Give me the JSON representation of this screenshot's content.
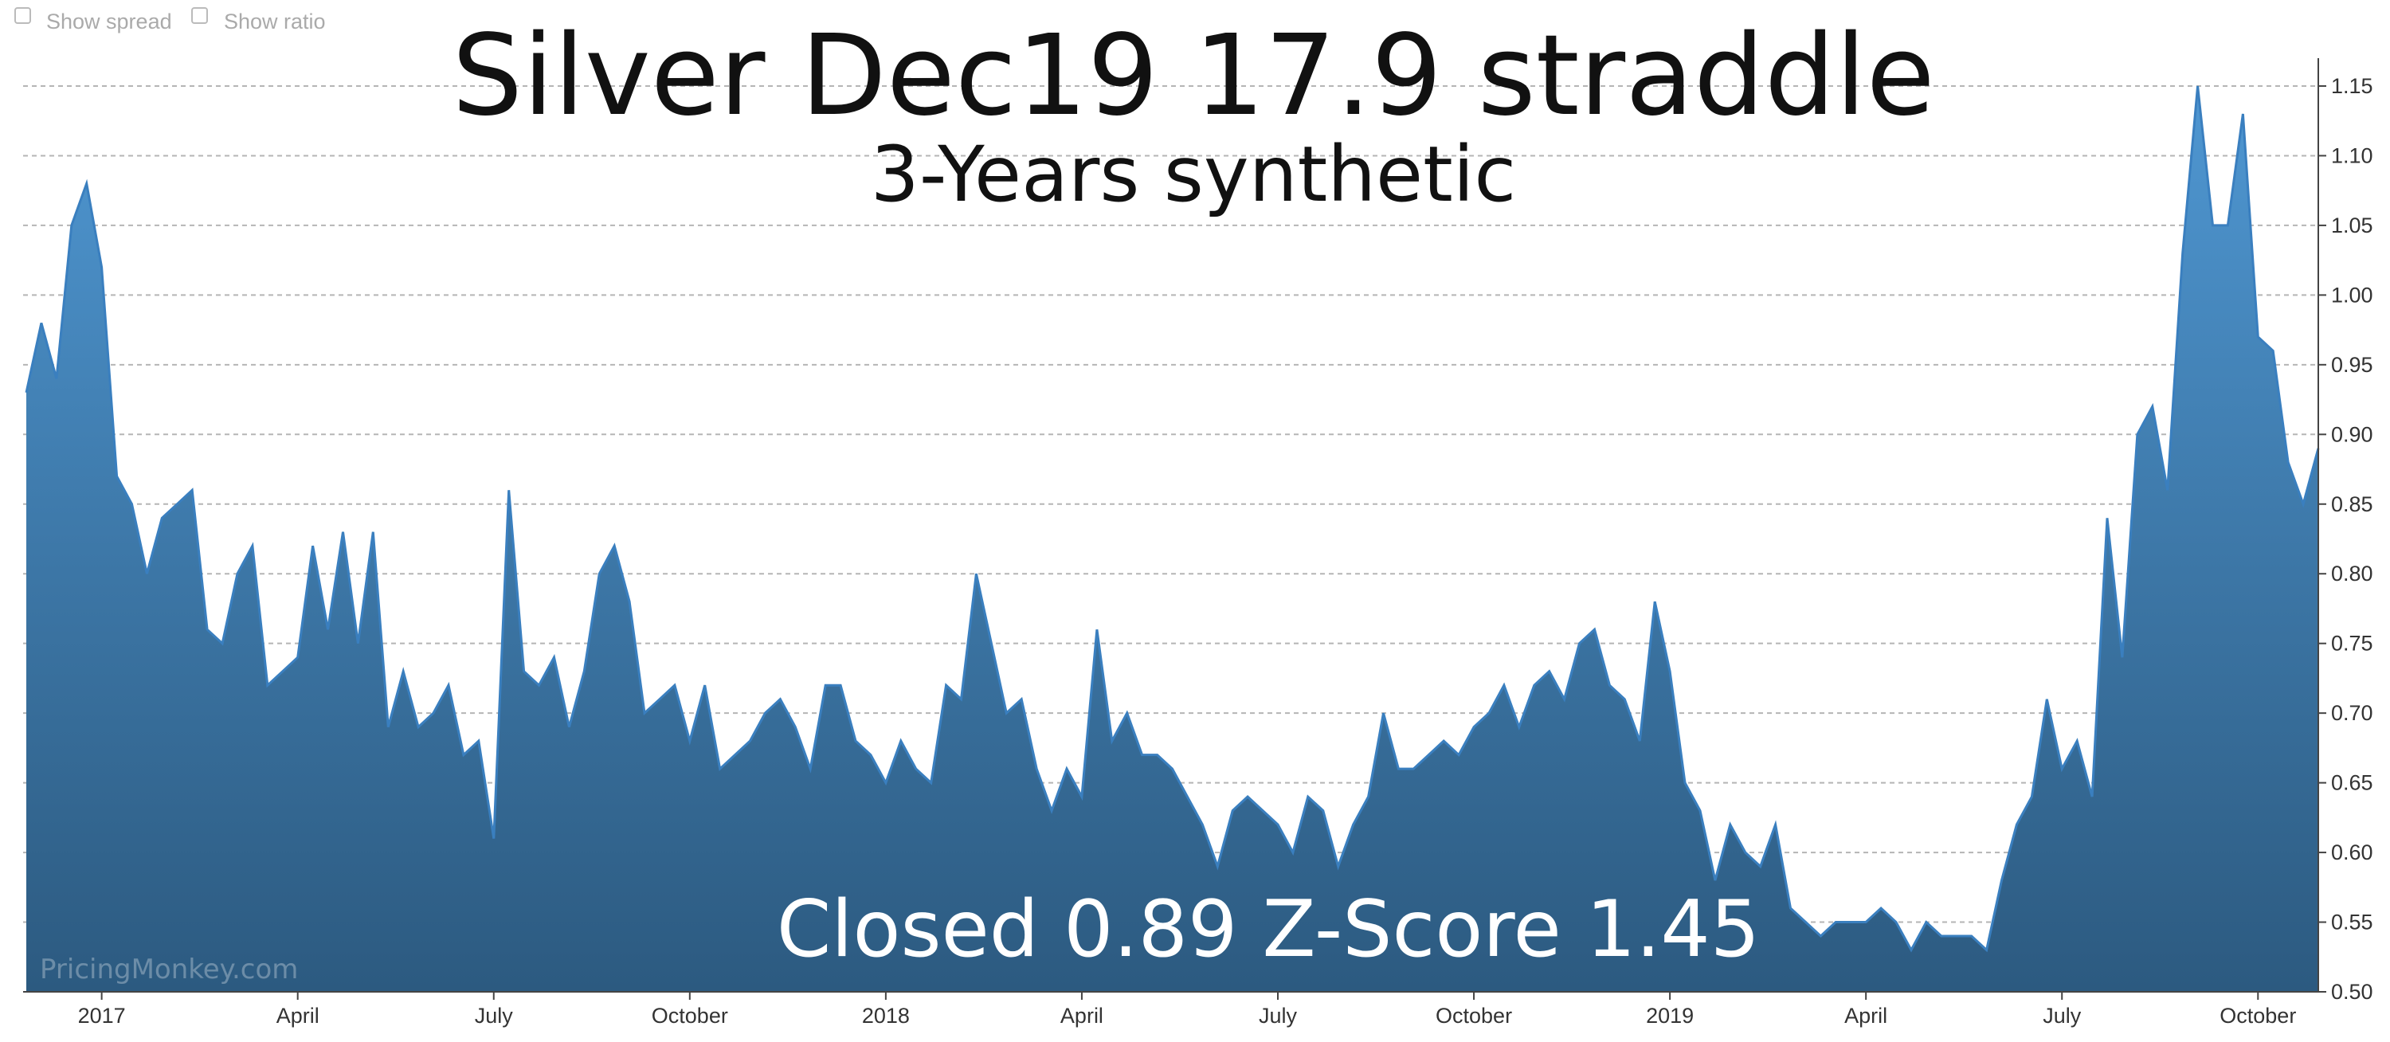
{
  "controls": [
    "Show spread",
    "Show ratio"
  ],
  "chart_data": {
    "type": "area",
    "title": "Silver Dec19 17.9 straddle",
    "subtitle": "3-Years synthetic",
    "annotation": "Closed 0.89 Z-Score 1.45",
    "watermark": "PricingMonkey.com",
    "color": "#3a7fbf",
    "grid": true,
    "ylim": [
      0.5,
      1.17
    ],
    "yticks": [
      {
        "value": 0.5,
        "label": "0.50"
      },
      0.55,
      {
        "value": 0.6,
        "label": "0.60"
      },
      0.65,
      {
        "value": 0.7,
        "label": "0.70"
      },
      0.75,
      {
        "value": 0.8,
        "label": "0.80"
      },
      0.85,
      {
        "value": 0.9,
        "label": "0.90"
      },
      0.95,
      {
        "value": 1.0,
        "label": "1.00"
      },
      1.05,
      {
        "value": 1.1,
        "label": "1.10"
      },
      1.15
    ],
    "categories": [
      null,
      null,
      null,
      null,
      null,
      "2017",
      null,
      null,
      null,
      null,
      null,
      null,
      null,
      null,
      null,
      null,
      null,
      null,
      "April",
      null,
      null,
      null,
      null,
      null,
      null,
      null,
      null,
      null,
      null,
      null,
      null,
      "July",
      null,
      null,
      null,
      null,
      null,
      null,
      null,
      null,
      null,
      null,
      null,
      null,
      "October",
      null,
      null,
      null,
      null,
      null,
      null,
      null,
      null,
      null,
      null,
      null,
      null,
      "2018",
      null,
      null,
      null,
      null,
      null,
      null,
      null,
      null,
      null,
      null,
      null,
      null,
      "April",
      null,
      null,
      null,
      null,
      null,
      null,
      null,
      null,
      null,
      null,
      null,
      null,
      "July",
      null,
      null,
      null,
      null,
      null,
      null,
      null,
      null,
      null,
      null,
      null,
      null,
      "October",
      null,
      null,
      null,
      null,
      null,
      null,
      null,
      null,
      null,
      null,
      null,
      null,
      "2019",
      null,
      null,
      null,
      null,
      null,
      null,
      null,
      null,
      null,
      null,
      null,
      null,
      "April",
      null,
      null,
      null,
      null,
      null,
      null,
      null,
      null,
      null,
      null,
      null,
      null,
      "July",
      null,
      null,
      null,
      null,
      null,
      null,
      null,
      null,
      null,
      null,
      null,
      null,
      "October",
      null,
      null,
      null,
      null
    ],
    "values": [
      0.93,
      0.98,
      0.94,
      1.05,
      1.08,
      1.02,
      0.87,
      0.85,
      0.8,
      0.84,
      0.85,
      0.86,
      0.76,
      0.75,
      0.8,
      0.82,
      0.72,
      0.73,
      0.74,
      0.82,
      0.76,
      0.83,
      0.75,
      0.83,
      0.69,
      0.73,
      0.69,
      0.7,
      0.72,
      0.67,
      0.68,
      0.61,
      0.86,
      0.73,
      0.72,
      0.74,
      0.69,
      0.73,
      0.8,
      0.82,
      0.78,
      0.7,
      0.71,
      0.72,
      0.68,
      0.72,
      0.66,
      0.67,
      0.68,
      0.7,
      0.71,
      0.69,
      0.66,
      0.72,
      0.72,
      0.68,
      0.67,
      0.65,
      0.68,
      0.66,
      0.65,
      0.72,
      0.71,
      0.8,
      0.75,
      0.7,
      0.71,
      0.66,
      0.63,
      0.66,
      0.64,
      0.76,
      0.68,
      0.7,
      0.67,
      0.67,
      0.66,
      0.64,
      0.62,
      0.59,
      0.63,
      0.64,
      0.63,
      0.62,
      0.6,
      0.64,
      0.63,
      0.59,
      0.62,
      0.64,
      0.7,
      0.66,
      0.66,
      0.67,
      0.68,
      0.67,
      0.69,
      0.7,
      0.72,
      0.69,
      0.72,
      0.73,
      0.71,
      0.75,
      0.76,
      0.72,
      0.71,
      0.68,
      0.78,
      0.73,
      0.65,
      0.63,
      0.58,
      0.62,
      0.6,
      0.59,
      0.62,
      0.56,
      0.55,
      0.54,
      0.55,
      0.55,
      0.55,
      0.56,
      0.55,
      0.53,
      0.55,
      0.54,
      0.54,
      0.54,
      0.53,
      0.58,
      0.62,
      0.64,
      0.71,
      0.66,
      0.68,
      0.64,
      0.84,
      0.74,
      0.9,
      0.92,
      0.86,
      1.03,
      1.15,
      1.05,
      1.05,
      1.13,
      0.97,
      0.96,
      0.88,
      0.85,
      0.89
    ]
  }
}
